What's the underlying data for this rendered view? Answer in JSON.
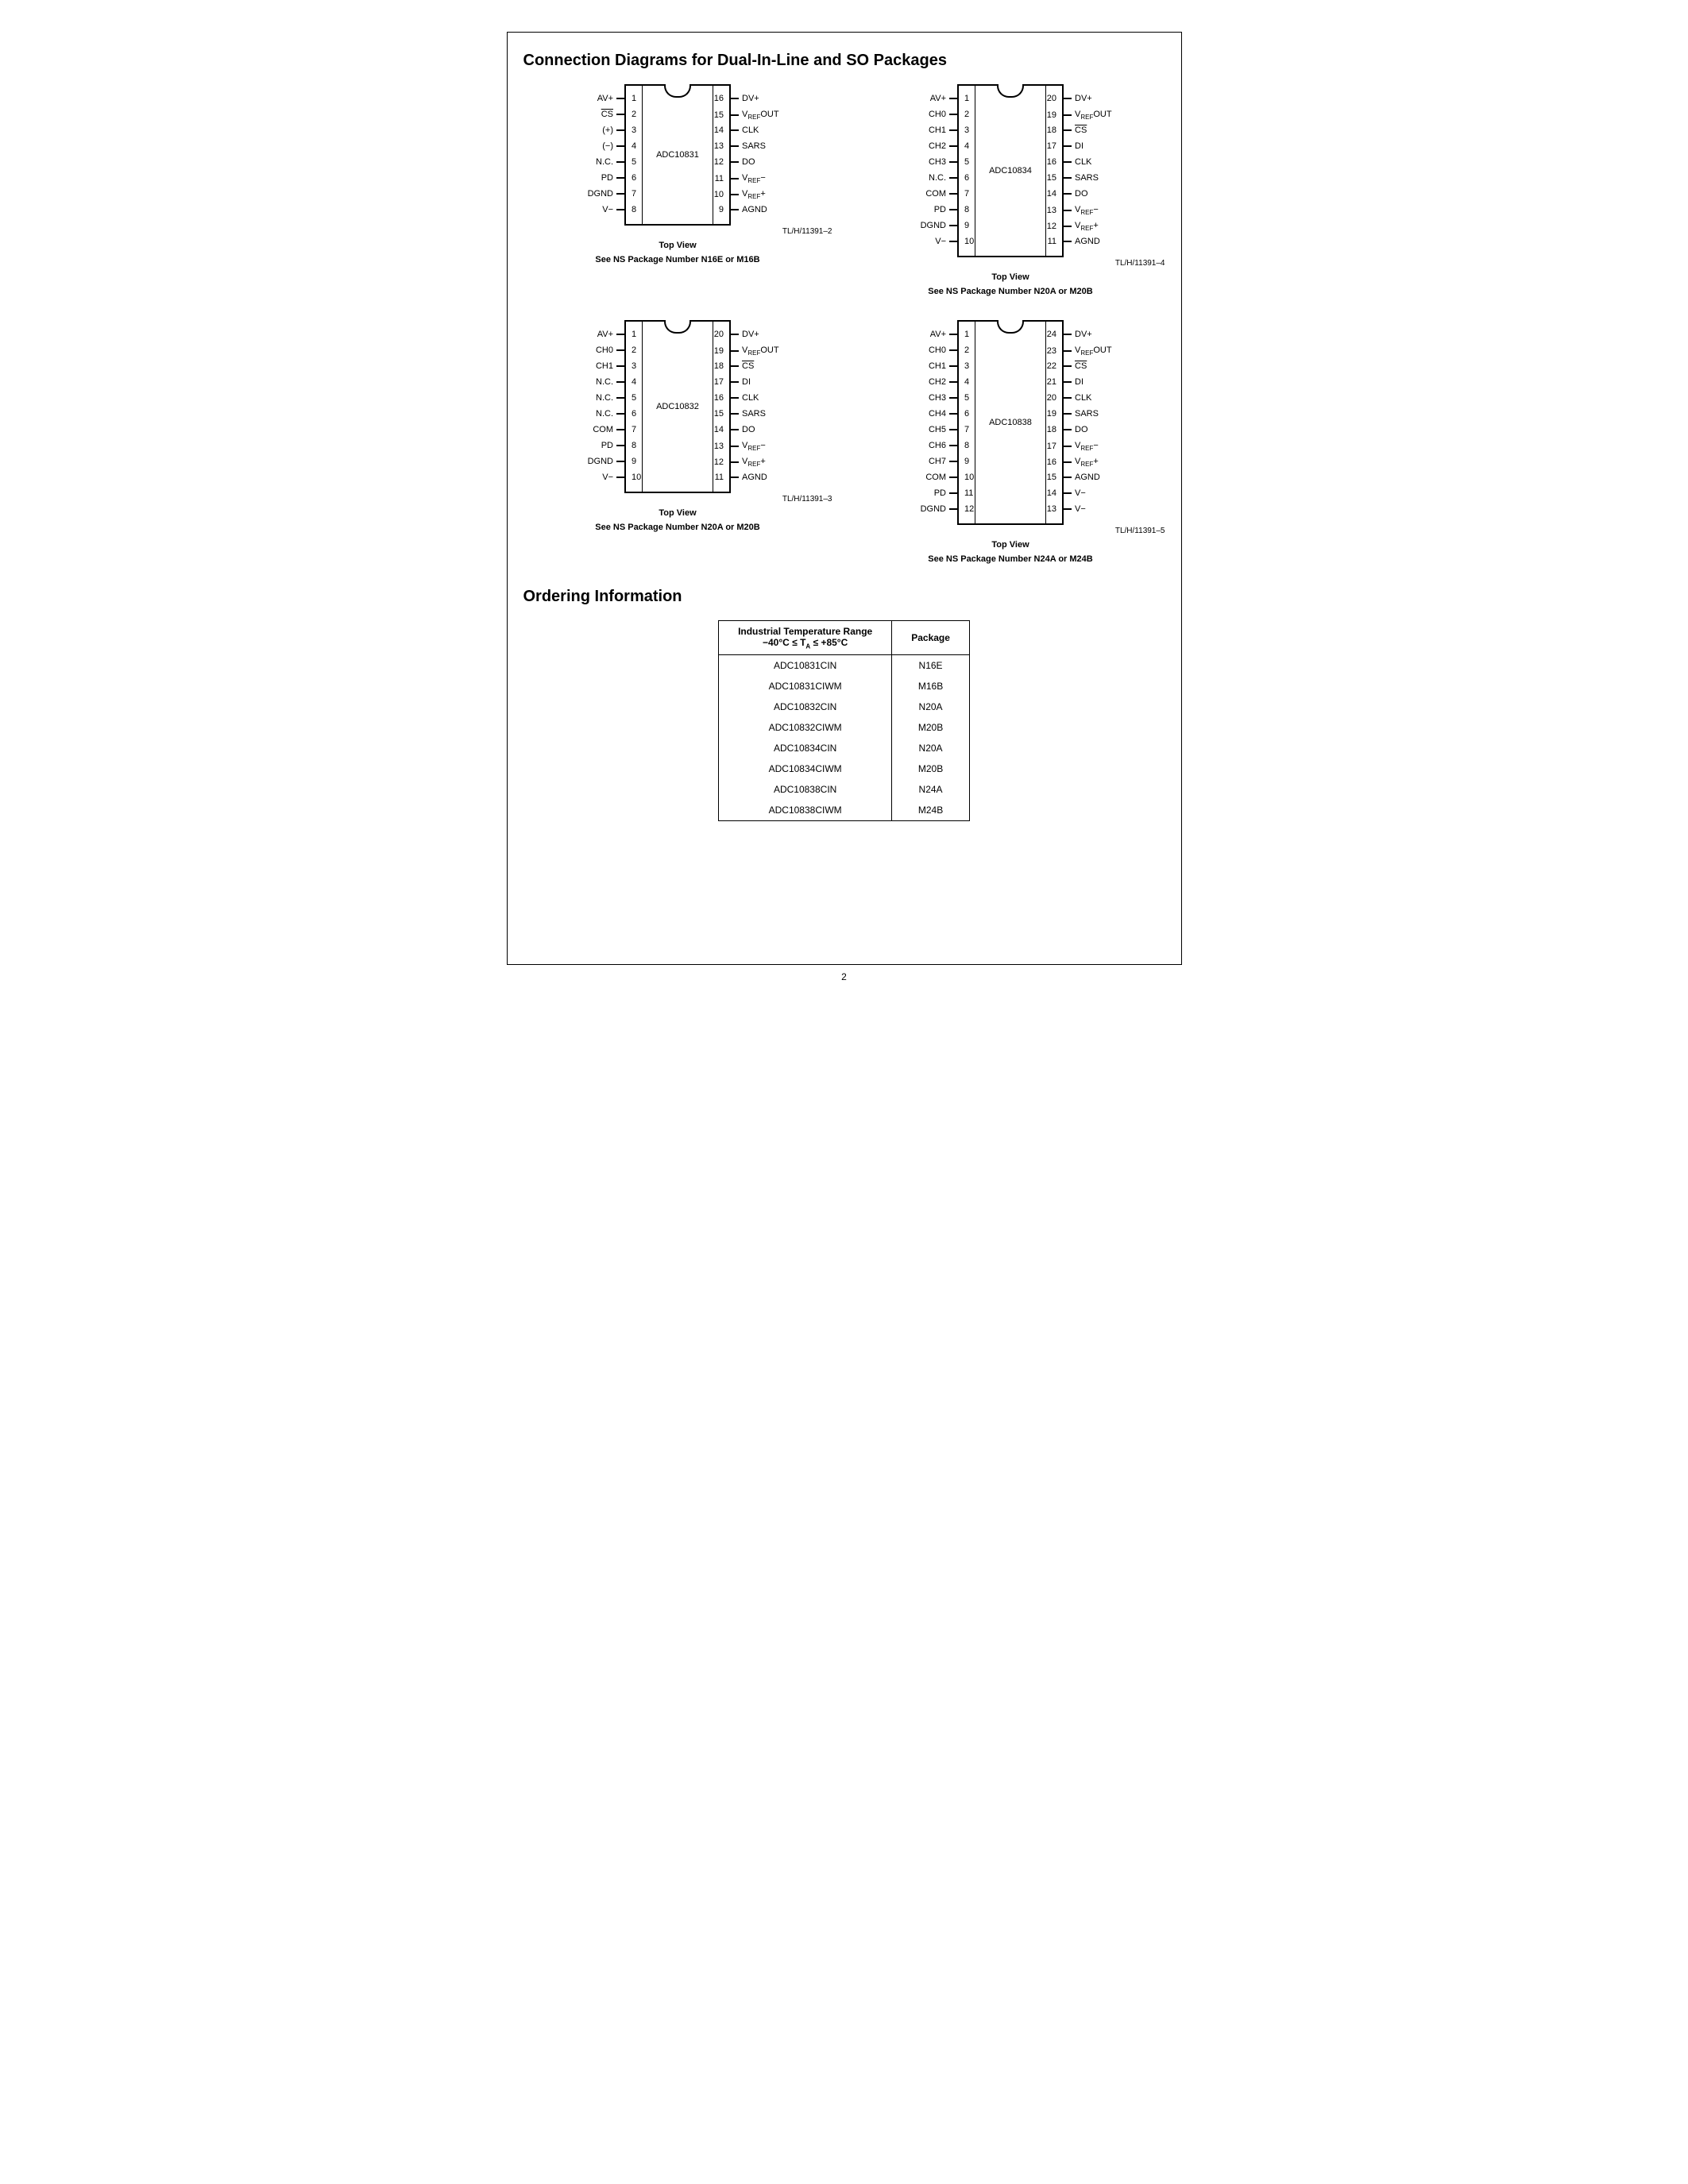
{
  "title": "Connection Diagrams for Dual-In-Line and SO Packages",
  "ordering_title": "Ordering Information",
  "page_number": "2",
  "topview": "Top View",
  "chips": [
    {
      "name": "ADC10831",
      "figref": "TL/H/11391–2",
      "pkg": "See NS Package Number N16E or M16B",
      "left": [
        {
          "n": "1",
          "l": "AV+"
        },
        {
          "n": "2",
          "l": "CS",
          "ovl": true
        },
        {
          "n": "3",
          "l": "(+)"
        },
        {
          "n": "4",
          "l": "(−)"
        },
        {
          "n": "5",
          "l": "N.C."
        },
        {
          "n": "6",
          "l": "PD"
        },
        {
          "n": "7",
          "l": "DGND"
        },
        {
          "n": "8",
          "l": "V−"
        }
      ],
      "right": [
        {
          "n": "16",
          "l": "DV+"
        },
        {
          "n": "15",
          "l": "V<sub>REF</sub>OUT"
        },
        {
          "n": "14",
          "l": "CLK"
        },
        {
          "n": "13",
          "l": "SARS"
        },
        {
          "n": "12",
          "l": "DO"
        },
        {
          "n": "11",
          "l": "V<sub>REF</sub>−"
        },
        {
          "n": "10",
          "l": "V<sub>REF</sub>+"
        },
        {
          "n": "9",
          "l": "AGND"
        }
      ]
    },
    {
      "name": "ADC10834",
      "figref": "TL/H/11391–4",
      "pkg": "See NS Package Number N20A or M20B",
      "left": [
        {
          "n": "1",
          "l": "AV+"
        },
        {
          "n": "2",
          "l": "CH0"
        },
        {
          "n": "3",
          "l": "CH1"
        },
        {
          "n": "4",
          "l": "CH2"
        },
        {
          "n": "5",
          "l": "CH3"
        },
        {
          "n": "6",
          "l": "N.C."
        },
        {
          "n": "7",
          "l": "COM"
        },
        {
          "n": "8",
          "l": "PD"
        },
        {
          "n": "9",
          "l": "DGND"
        },
        {
          "n": "10",
          "l": "V−"
        }
      ],
      "right": [
        {
          "n": "20",
          "l": "DV+"
        },
        {
          "n": "19",
          "l": "V<sub>REF</sub>OUT"
        },
        {
          "n": "18",
          "l": "CS",
          "ovl": true
        },
        {
          "n": "17",
          "l": "DI"
        },
        {
          "n": "16",
          "l": "CLK"
        },
        {
          "n": "15",
          "l": "SARS"
        },
        {
          "n": "14",
          "l": "DO"
        },
        {
          "n": "13",
          "l": "V<sub>REF</sub>−"
        },
        {
          "n": "12",
          "l": "V<sub>REF</sub>+"
        },
        {
          "n": "11",
          "l": "AGND"
        }
      ]
    },
    {
      "name": "ADC10832",
      "figref": "TL/H/11391–3",
      "pkg": "See NS Package Number N20A or M20B",
      "left": [
        {
          "n": "1",
          "l": "AV+"
        },
        {
          "n": "2",
          "l": "CH0"
        },
        {
          "n": "3",
          "l": "CH1"
        },
        {
          "n": "4",
          "l": "N.C."
        },
        {
          "n": "5",
          "l": "N.C."
        },
        {
          "n": "6",
          "l": "N.C."
        },
        {
          "n": "7",
          "l": "COM"
        },
        {
          "n": "8",
          "l": "PD"
        },
        {
          "n": "9",
          "l": "DGND"
        },
        {
          "n": "10",
          "l": "V−"
        }
      ],
      "right": [
        {
          "n": "20",
          "l": "DV+"
        },
        {
          "n": "19",
          "l": "V<sub>REF</sub>OUT"
        },
        {
          "n": "18",
          "l": "CS",
          "ovl": true
        },
        {
          "n": "17",
          "l": "DI"
        },
        {
          "n": "16",
          "l": "CLK"
        },
        {
          "n": "15",
          "l": "SARS"
        },
        {
          "n": "14",
          "l": "DO"
        },
        {
          "n": "13",
          "l": "V<sub>REF</sub>−"
        },
        {
          "n": "12",
          "l": "V<sub>REF</sub>+"
        },
        {
          "n": "11",
          "l": "AGND"
        }
      ]
    },
    {
      "name": "ADC10838",
      "figref": "TL/H/11391–5",
      "pkg": "See NS Package Number N24A or M24B",
      "left": [
        {
          "n": "1",
          "l": "AV+"
        },
        {
          "n": "2",
          "l": "CH0"
        },
        {
          "n": "3",
          "l": "CH1"
        },
        {
          "n": "4",
          "l": "CH2"
        },
        {
          "n": "5",
          "l": "CH3"
        },
        {
          "n": "6",
          "l": "CH4"
        },
        {
          "n": "7",
          "l": "CH5"
        },
        {
          "n": "8",
          "l": "CH6"
        },
        {
          "n": "9",
          "l": "CH7"
        },
        {
          "n": "10",
          "l": "COM"
        },
        {
          "n": "11",
          "l": "PD"
        },
        {
          "n": "12",
          "l": "DGND"
        }
      ],
      "right": [
        {
          "n": "24",
          "l": "DV+"
        },
        {
          "n": "23",
          "l": "V<sub>REF</sub>OUT"
        },
        {
          "n": "22",
          "l": "CS",
          "ovl": true
        },
        {
          "n": "21",
          "l": "DI"
        },
        {
          "n": "20",
          "l": "CLK"
        },
        {
          "n": "19",
          "l": "SARS"
        },
        {
          "n": "18",
          "l": "DO"
        },
        {
          "n": "17",
          "l": "V<sub>REF</sub>−"
        },
        {
          "n": "16",
          "l": "V<sub>REF</sub>+"
        },
        {
          "n": "15",
          "l": "AGND"
        },
        {
          "n": "14",
          "l": "V−"
        },
        {
          "n": "13",
          "l": "V−"
        }
      ]
    }
  ],
  "ordering": {
    "header1_line1": "Industrial Temperature Range",
    "header1_line2": "−40°C ≤ T<sub>A</sub> ≤ +85°C",
    "header2": "Package",
    "rows": [
      [
        "ADC10831CIN",
        "N16E"
      ],
      [
        "ADC10831CIWM",
        "M16B"
      ],
      [
        "ADC10832CIN",
        "N20A"
      ],
      [
        "ADC10832CIWM",
        "M20B"
      ],
      [
        "ADC10834CIN",
        "N20A"
      ],
      [
        "ADC10834CIWM",
        "M20B"
      ],
      [
        "ADC10838CIN",
        "N24A"
      ],
      [
        "ADC10838CIWM",
        "M24B"
      ]
    ]
  },
  "style": {
    "pin_spacing": 20,
    "chip_width": 130,
    "chip_pad_top": 10
  }
}
